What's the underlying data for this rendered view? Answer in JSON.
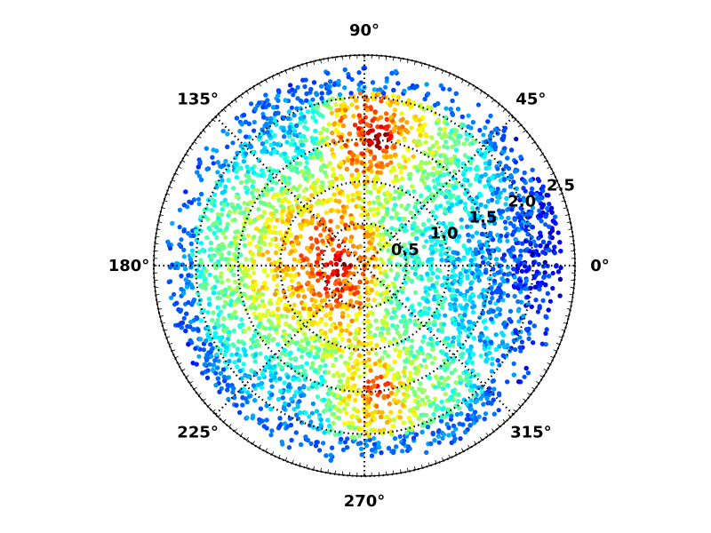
{
  "chart_data": {
    "type": "scatter",
    "projection": "polar",
    "title": "",
    "angle_ticks": [
      0,
      45,
      90,
      135,
      180,
      225,
      270,
      315
    ],
    "angle_tick_labels": [
      "0°",
      "45°",
      "90°",
      "135°",
      "180°",
      "225°",
      "270°",
      "315°"
    ],
    "radial_ticks": [
      0.5,
      1.0,
      1.5,
      2.0,
      2.5
    ],
    "radial_tick_labels": [
      "0.5",
      "1.0",
      "1.5",
      "2.0",
      "2.5"
    ],
    "rlim": [
      0,
      2.5
    ],
    "radial_label_angle_deg": 22.5,
    "grid": true,
    "grid_style": "dotted",
    "colormap": "jet",
    "value_range": [
      0,
      1
    ],
    "density_regions": [
      {
        "theta": 180,
        "r": 0.3,
        "level": 0.95
      },
      {
        "theta": 200,
        "r": 0.5,
        "level": 0.85
      },
      {
        "theta": 160,
        "r": 0.6,
        "level": 0.8
      },
      {
        "theta": 170,
        "r": 1.0,
        "level": 0.7
      },
      {
        "theta": 200,
        "r": 1.1,
        "level": 0.65
      },
      {
        "theta": 150,
        "r": 1.3,
        "level": 0.55
      },
      {
        "theta": 220,
        "r": 1.5,
        "level": 0.45
      },
      {
        "theta": 180,
        "r": 1.8,
        "level": 0.45
      },
      {
        "theta": 130,
        "r": 2.0,
        "level": 0.35
      },
      {
        "theta": 240,
        "r": 2.0,
        "level": 0.3
      },
      {
        "theta": 84,
        "r": 1.53,
        "level": 0.97
      },
      {
        "theta": 276,
        "r": 1.48,
        "level": 0.85
      },
      {
        "theta": 60,
        "r": 1.6,
        "level": 0.55
      },
      {
        "theta": 300,
        "r": 1.6,
        "level": 0.5
      },
      {
        "theta": 45,
        "r": 1.1,
        "level": 0.45
      },
      {
        "theta": 315,
        "r": 1.0,
        "level": 0.45
      },
      {
        "theta": 0,
        "r": 0.6,
        "level": 0.42
      },
      {
        "theta": 20,
        "r": 1.6,
        "level": 0.3
      },
      {
        "theta": 340,
        "r": 1.6,
        "level": 0.3
      },
      {
        "theta": 0,
        "r": 2.2,
        "level": 0.12
      }
    ]
  }
}
